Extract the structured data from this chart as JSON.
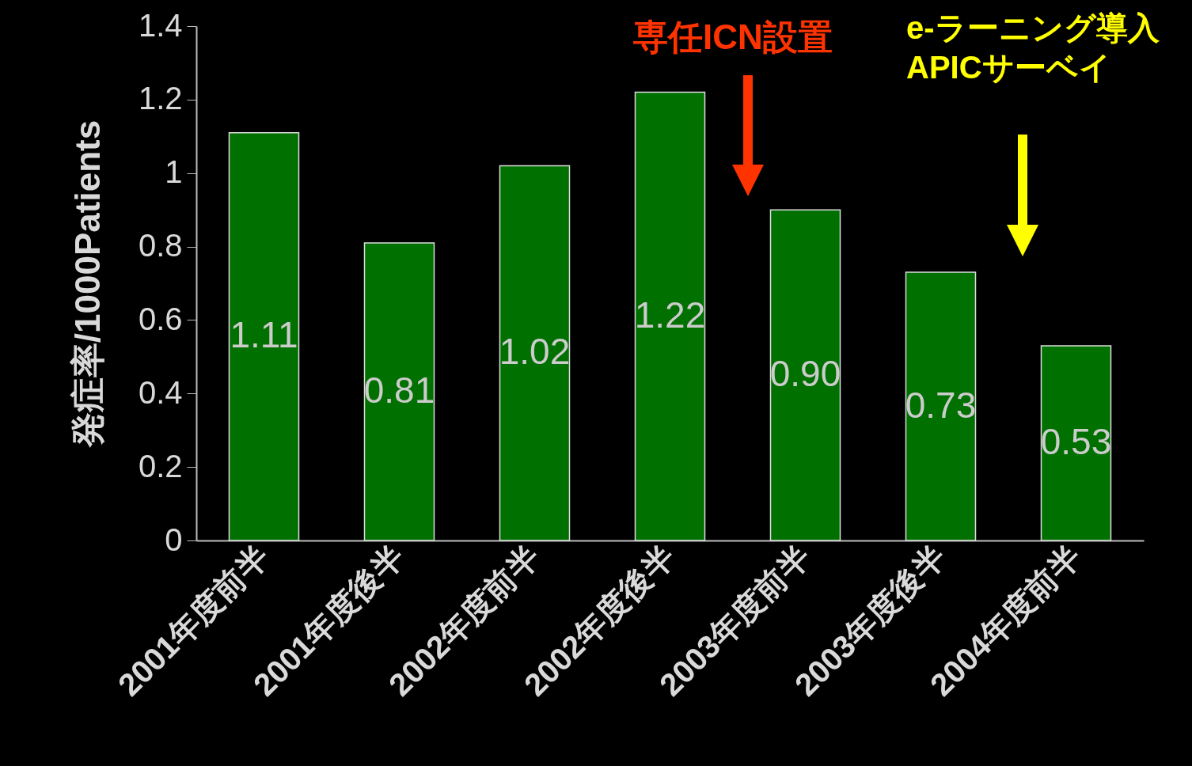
{
  "chart_data": {
    "type": "bar",
    "ylabel": "発症率/1000Patients",
    "categories": [
      "2001年度前半",
      "2001年度後半",
      "2002年度前半",
      "2002年度後半",
      "2003年度前半",
      "2003年度後半",
      "2004年度前半"
    ],
    "values": [
      1.11,
      0.81,
      1.02,
      1.22,
      0.9,
      0.73,
      0.53
    ],
    "value_labels": [
      "1.11",
      "0.81",
      "1.02",
      "1.22",
      "0.90",
      "0.73",
      "0.53"
    ],
    "color": "#007000",
    "ylim": [
      0,
      1.4
    ],
    "yticks": [
      0,
      0.2,
      0.4,
      0.6,
      0.8,
      1,
      1.2,
      1.4
    ],
    "annotations": [
      "専任ICN設置",
      "e-ラーニング導入\nAPICサーベイ"
    ]
  }
}
